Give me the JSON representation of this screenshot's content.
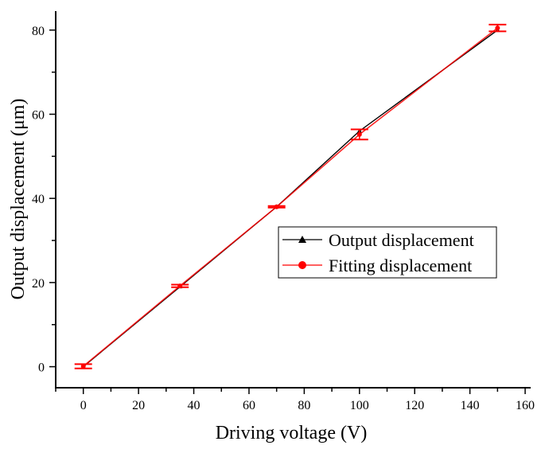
{
  "chart_data": {
    "type": "line",
    "title": "",
    "xlabel": "Driving voltage (V)",
    "ylabel": "Output displacement (μm)",
    "xlim": [
      -10,
      162
    ],
    "ylim": [
      -5,
      84.5
    ],
    "xticks": [
      0,
      20,
      40,
      60,
      80,
      100,
      120,
      140,
      160
    ],
    "yticks": [
      0,
      20,
      40,
      60,
      80
    ],
    "grid": false,
    "legend_position": "center-right",
    "series": [
      {
        "name": "Output displacement",
        "color": "#000000",
        "marker": "triangle",
        "x": [
          0,
          35,
          70,
          100,
          150
        ],
        "y": [
          0,
          19,
          38,
          56,
          80
        ]
      },
      {
        "name": "Fitting displacement",
        "color": "#ff0000",
        "marker": "circle",
        "x": [
          0,
          35,
          70,
          100,
          150
        ],
        "y": [
          0.1,
          19.2,
          38,
          55.2,
          80.5
        ],
        "error": [
          0.5,
          0.3,
          0.2,
          1.2,
          0.8
        ]
      }
    ]
  }
}
